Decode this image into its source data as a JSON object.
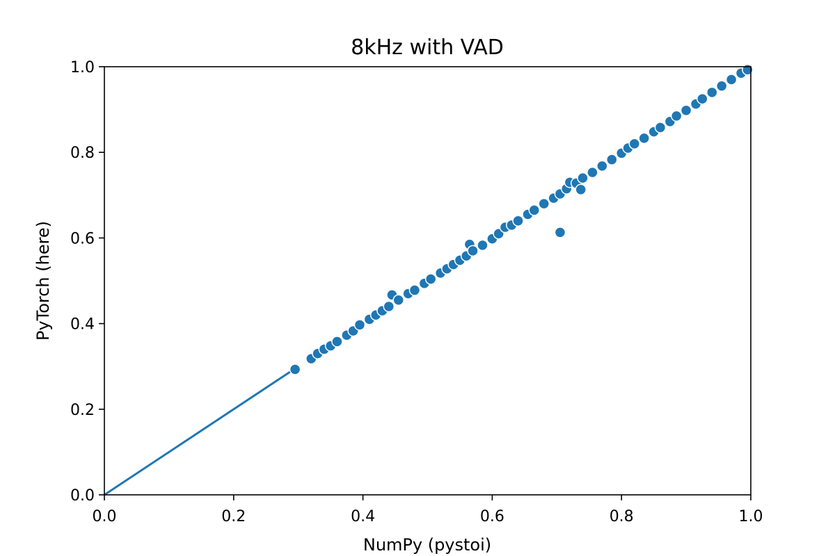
{
  "chart_data": {
    "type": "scatter",
    "title": "8kHz with VAD",
    "xlabel": "NumPy (pystoi)",
    "ylabel": "PyTorch (here)",
    "xlim": [
      0.0,
      1.0
    ],
    "ylim": [
      0.0,
      1.0
    ],
    "xticks": [
      "0.0",
      "0.2",
      "0.4",
      "0.6",
      "0.8",
      "1.0"
    ],
    "yticks": [
      "0.0",
      "0.2",
      "0.4",
      "0.6",
      "0.8",
      "1.0"
    ],
    "grid": false,
    "legend": "none",
    "color": "#1f77b4",
    "reference_line": {
      "x": [
        0.0,
        0.3
      ],
      "y": [
        0.0,
        0.3
      ]
    },
    "series": [
      {
        "x": [
          0.295,
          0.32,
          0.33,
          0.34,
          0.35,
          0.36,
          0.375,
          0.385,
          0.395,
          0.41,
          0.42,
          0.43,
          0.44,
          0.445,
          0.455,
          0.47,
          0.48,
          0.495,
          0.505,
          0.52,
          0.53,
          0.54,
          0.55,
          0.56,
          0.565,
          0.57,
          0.585,
          0.6,
          0.61,
          0.62,
          0.63,
          0.64,
          0.655,
          0.665,
          0.68,
          0.695,
          0.705,
          0.715,
          0.72,
          0.73,
          0.74,
          0.755,
          0.77,
          0.785,
          0.8,
          0.81,
          0.82,
          0.835,
          0.85,
          0.86,
          0.875,
          0.885,
          0.9,
          0.915,
          0.925,
          0.94,
          0.955,
          0.97,
          0.985,
          0.995,
          0.705,
          0.737
        ],
        "y": [
          0.293,
          0.318,
          0.33,
          0.34,
          0.348,
          0.358,
          0.373,
          0.383,
          0.397,
          0.41,
          0.42,
          0.43,
          0.44,
          0.467,
          0.455,
          0.47,
          0.478,
          0.494,
          0.504,
          0.518,
          0.528,
          0.538,
          0.548,
          0.558,
          0.585,
          0.57,
          0.583,
          0.598,
          0.61,
          0.625,
          0.63,
          0.64,
          0.655,
          0.665,
          0.68,
          0.693,
          0.703,
          0.715,
          0.73,
          0.728,
          0.74,
          0.753,
          0.768,
          0.783,
          0.798,
          0.81,
          0.82,
          0.833,
          0.848,
          0.858,
          0.872,
          0.885,
          0.898,
          0.913,
          0.925,
          0.94,
          0.955,
          0.97,
          0.985,
          0.993,
          0.613,
          0.713
        ]
      }
    ]
  }
}
